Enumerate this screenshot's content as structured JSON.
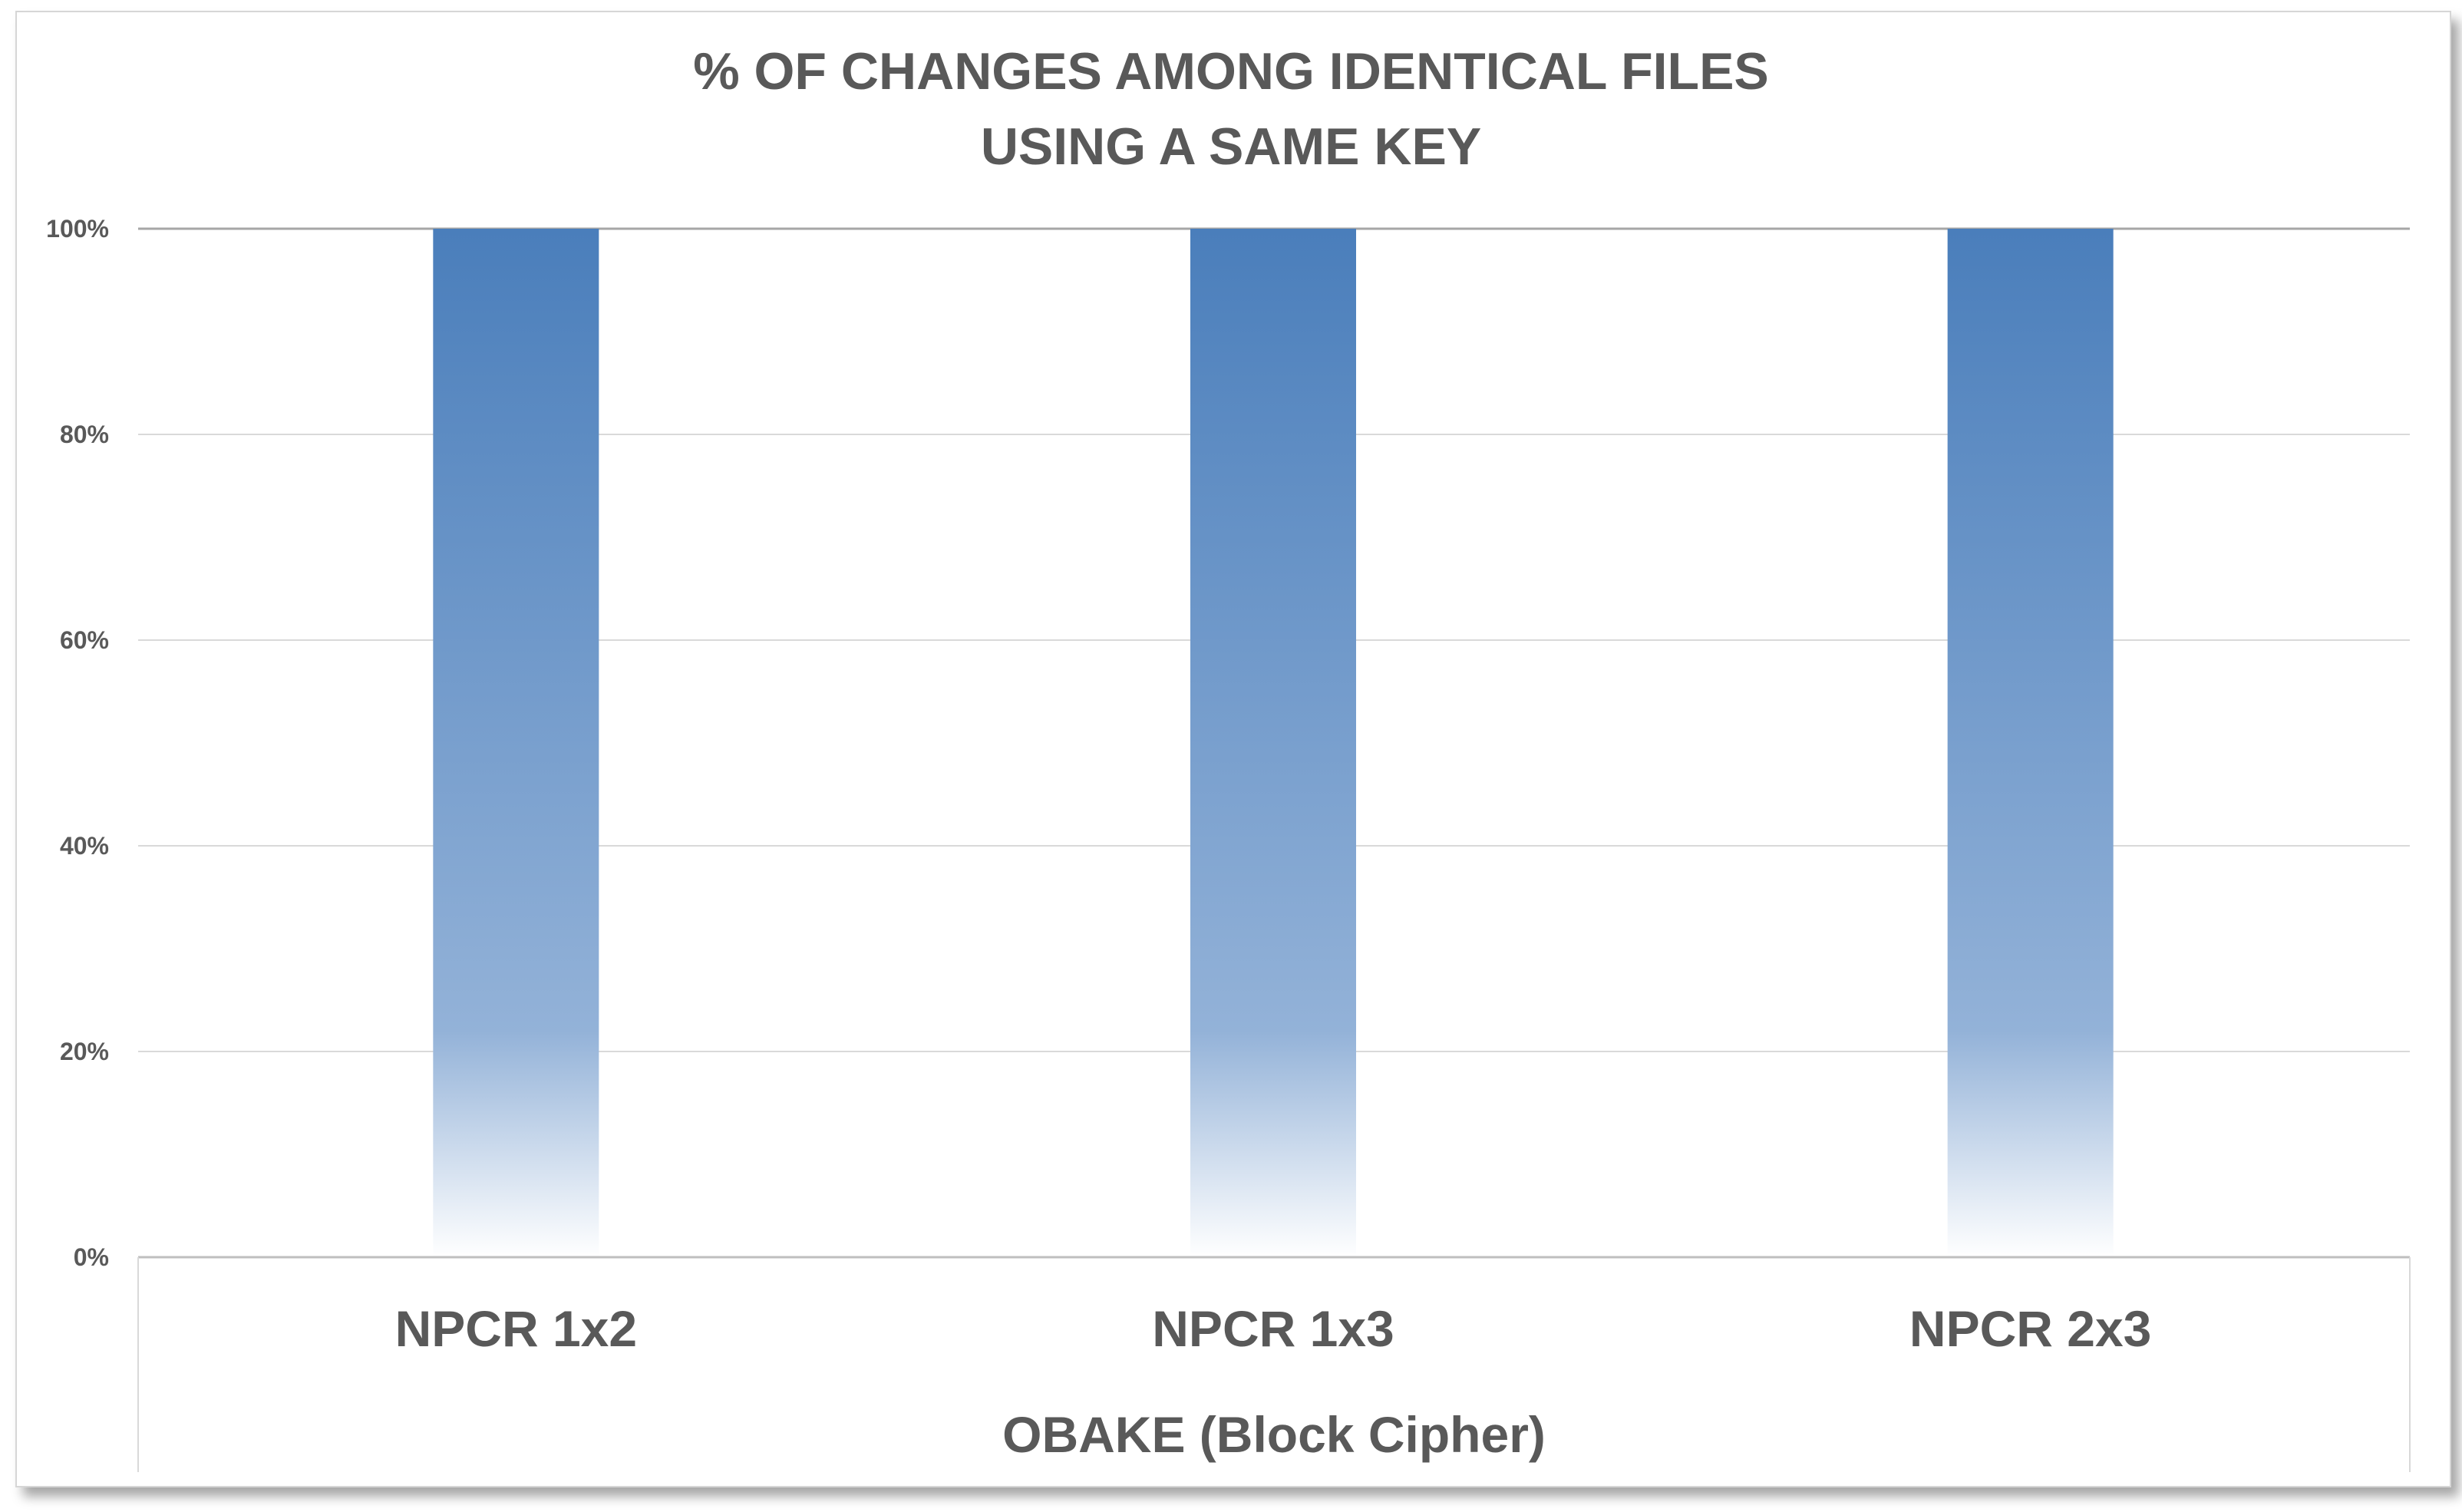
{
  "chart_data": {
    "type": "bar",
    "title_lines": [
      "% OF CHANGES AMONG IDENTICAL FILES",
      "USING A SAME KEY"
    ],
    "categories": [
      "NPCR 1x2",
      "NPCR 1x3",
      "NPCR 2x3"
    ],
    "group_label": "OBAKE (Block Cipher)",
    "values": [
      100,
      100,
      100
    ],
    "ylim": [
      0,
      100
    ],
    "yticks": [
      0,
      20,
      40,
      60,
      80,
      100
    ],
    "ytick_labels": [
      "0%",
      "20%",
      "40%",
      "60%",
      "80%",
      "100%"
    ],
    "grid": true,
    "colors": {
      "bar_top": "#4a7ebb",
      "bar_bottom": "#ffffff",
      "gridline": "#d9d9d9",
      "text": "#595959"
    }
  }
}
